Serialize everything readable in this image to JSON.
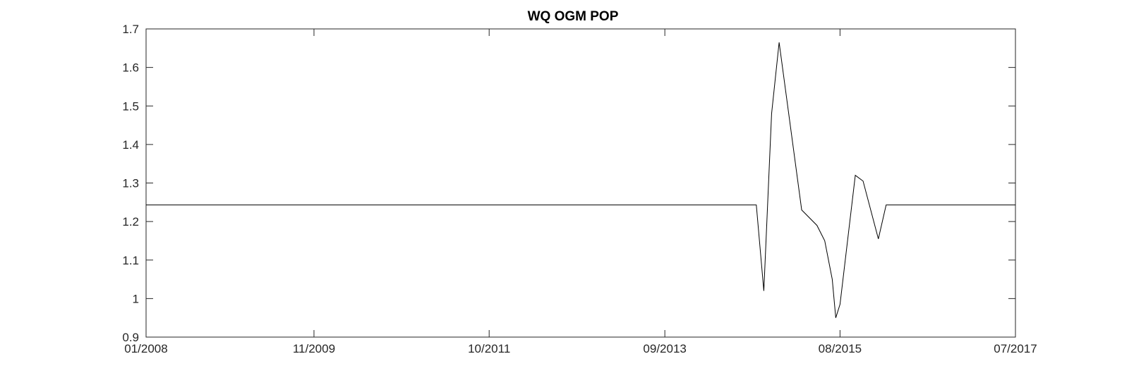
{
  "chart_data": {
    "type": "line",
    "title": "WQ OGM POP",
    "xlabel": "",
    "ylabel": "",
    "x_ticks": [
      {
        "date": "2008-01-01",
        "label": "01/2008"
      },
      {
        "date": "2009-11-01",
        "label": "11/2009"
      },
      {
        "date": "2011-10-01",
        "label": "10/2011"
      },
      {
        "date": "2013-09-01",
        "label": "09/2013"
      },
      {
        "date": "2015-08-01",
        "label": "08/2015"
      },
      {
        "date": "2017-07-01",
        "label": "07/2017"
      }
    ],
    "xlim": [
      "2008-01-01",
      "2017-07-01"
    ],
    "ylim": [
      0.9,
      1.7
    ],
    "y_ticks": [
      0.9,
      1.0,
      1.1,
      1.2,
      1.3,
      1.4,
      1.5,
      1.6,
      1.7
    ],
    "y_tick_labels": [
      "0.9",
      "1",
      "1.1",
      "1.2",
      "1.3",
      "1.4",
      "1.5",
      "1.6",
      "1.7"
    ],
    "grid": false,
    "series": [
      {
        "color": "#000000",
        "points": [
          {
            "x": "2008-01-01",
            "y": 1.243
          },
          {
            "x": "2014-09-01",
            "y": 1.243
          },
          {
            "x": "2014-10-01",
            "y": 1.02
          },
          {
            "x": "2014-11-01",
            "y": 1.48
          },
          {
            "x": "2014-12-01",
            "y": 1.665
          },
          {
            "x": "2015-03-01",
            "y": 1.23
          },
          {
            "x": "2015-05-01",
            "y": 1.19
          },
          {
            "x": "2015-06-01",
            "y": 1.15
          },
          {
            "x": "2015-07-01",
            "y": 1.05
          },
          {
            "x": "2015-07-15",
            "y": 0.95
          },
          {
            "x": "2015-08-01",
            "y": 0.985
          },
          {
            "x": "2015-10-01",
            "y": 1.32
          },
          {
            "x": "2015-11-01",
            "y": 1.305
          },
          {
            "x": "2016-01-01",
            "y": 1.155
          },
          {
            "x": "2016-02-01",
            "y": 1.243
          },
          {
            "x": "2017-07-01",
            "y": 1.243
          }
        ]
      }
    ]
  }
}
